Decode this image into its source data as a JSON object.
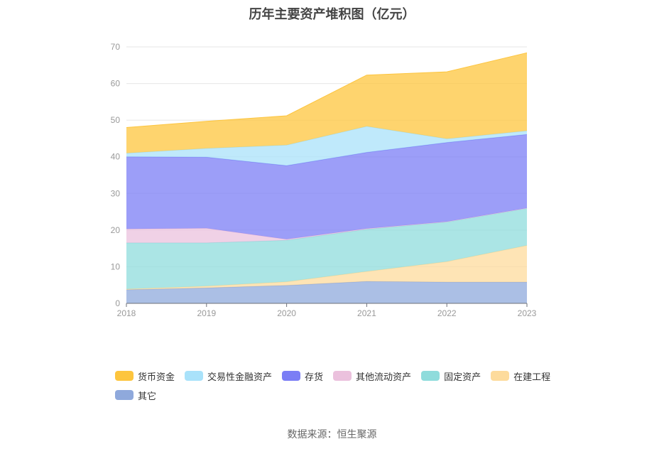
{
  "chart_data": {
    "type": "area",
    "stacked": true,
    "title": "历年主要资产堆积图（亿元）",
    "categories": [
      "2018",
      "2019",
      "2020",
      "2021",
      "2022",
      "2023"
    ],
    "ylim": [
      0,
      70
    ],
    "yticks": [
      0,
      10,
      20,
      30,
      40,
      50,
      60,
      70
    ],
    "grid": true,
    "legend_position": "bottom",
    "series": [
      {
        "name": "其它",
        "color": "#8fa9dc",
        "values": [
          3.7,
          4.2,
          4.9,
          6.0,
          5.8,
          5.8
        ]
      },
      {
        "name": "在建工程",
        "color": "#fddb9c",
        "values": [
          0.2,
          0.5,
          1.0,
          2.7,
          5.6,
          10.0
        ]
      },
      {
        "name": "固定资产",
        "color": "#8fdcdc",
        "values": [
          12.6,
          11.8,
          11.3,
          11.5,
          10.8,
          10.1
        ]
      },
      {
        "name": "其他流动资产",
        "color": "#ebc1dd",
        "values": [
          3.8,
          4.0,
          0.3,
          0.2,
          0.1,
          0.1
        ]
      },
      {
        "name": "存货",
        "color": "#7b7ef5",
        "values": [
          19.7,
          19.4,
          20.1,
          20.8,
          21.6,
          20.1
        ]
      },
      {
        "name": "交易性金融资产",
        "color": "#a9e2fa",
        "values": [
          1.0,
          2.4,
          5.6,
          7.1,
          1.0,
          1.0
        ]
      },
      {
        "name": "货币资金",
        "color": "#fdc53e",
        "values": [
          7.0,
          7.4,
          8.0,
          14.0,
          18.3,
          21.3
        ]
      }
    ],
    "legend_order": [
      "货币资金",
      "交易性金融资产",
      "存货",
      "其他流动资产",
      "固定资产",
      "在建工程",
      "其它"
    ]
  },
  "source_text": "数据来源：恒生聚源"
}
